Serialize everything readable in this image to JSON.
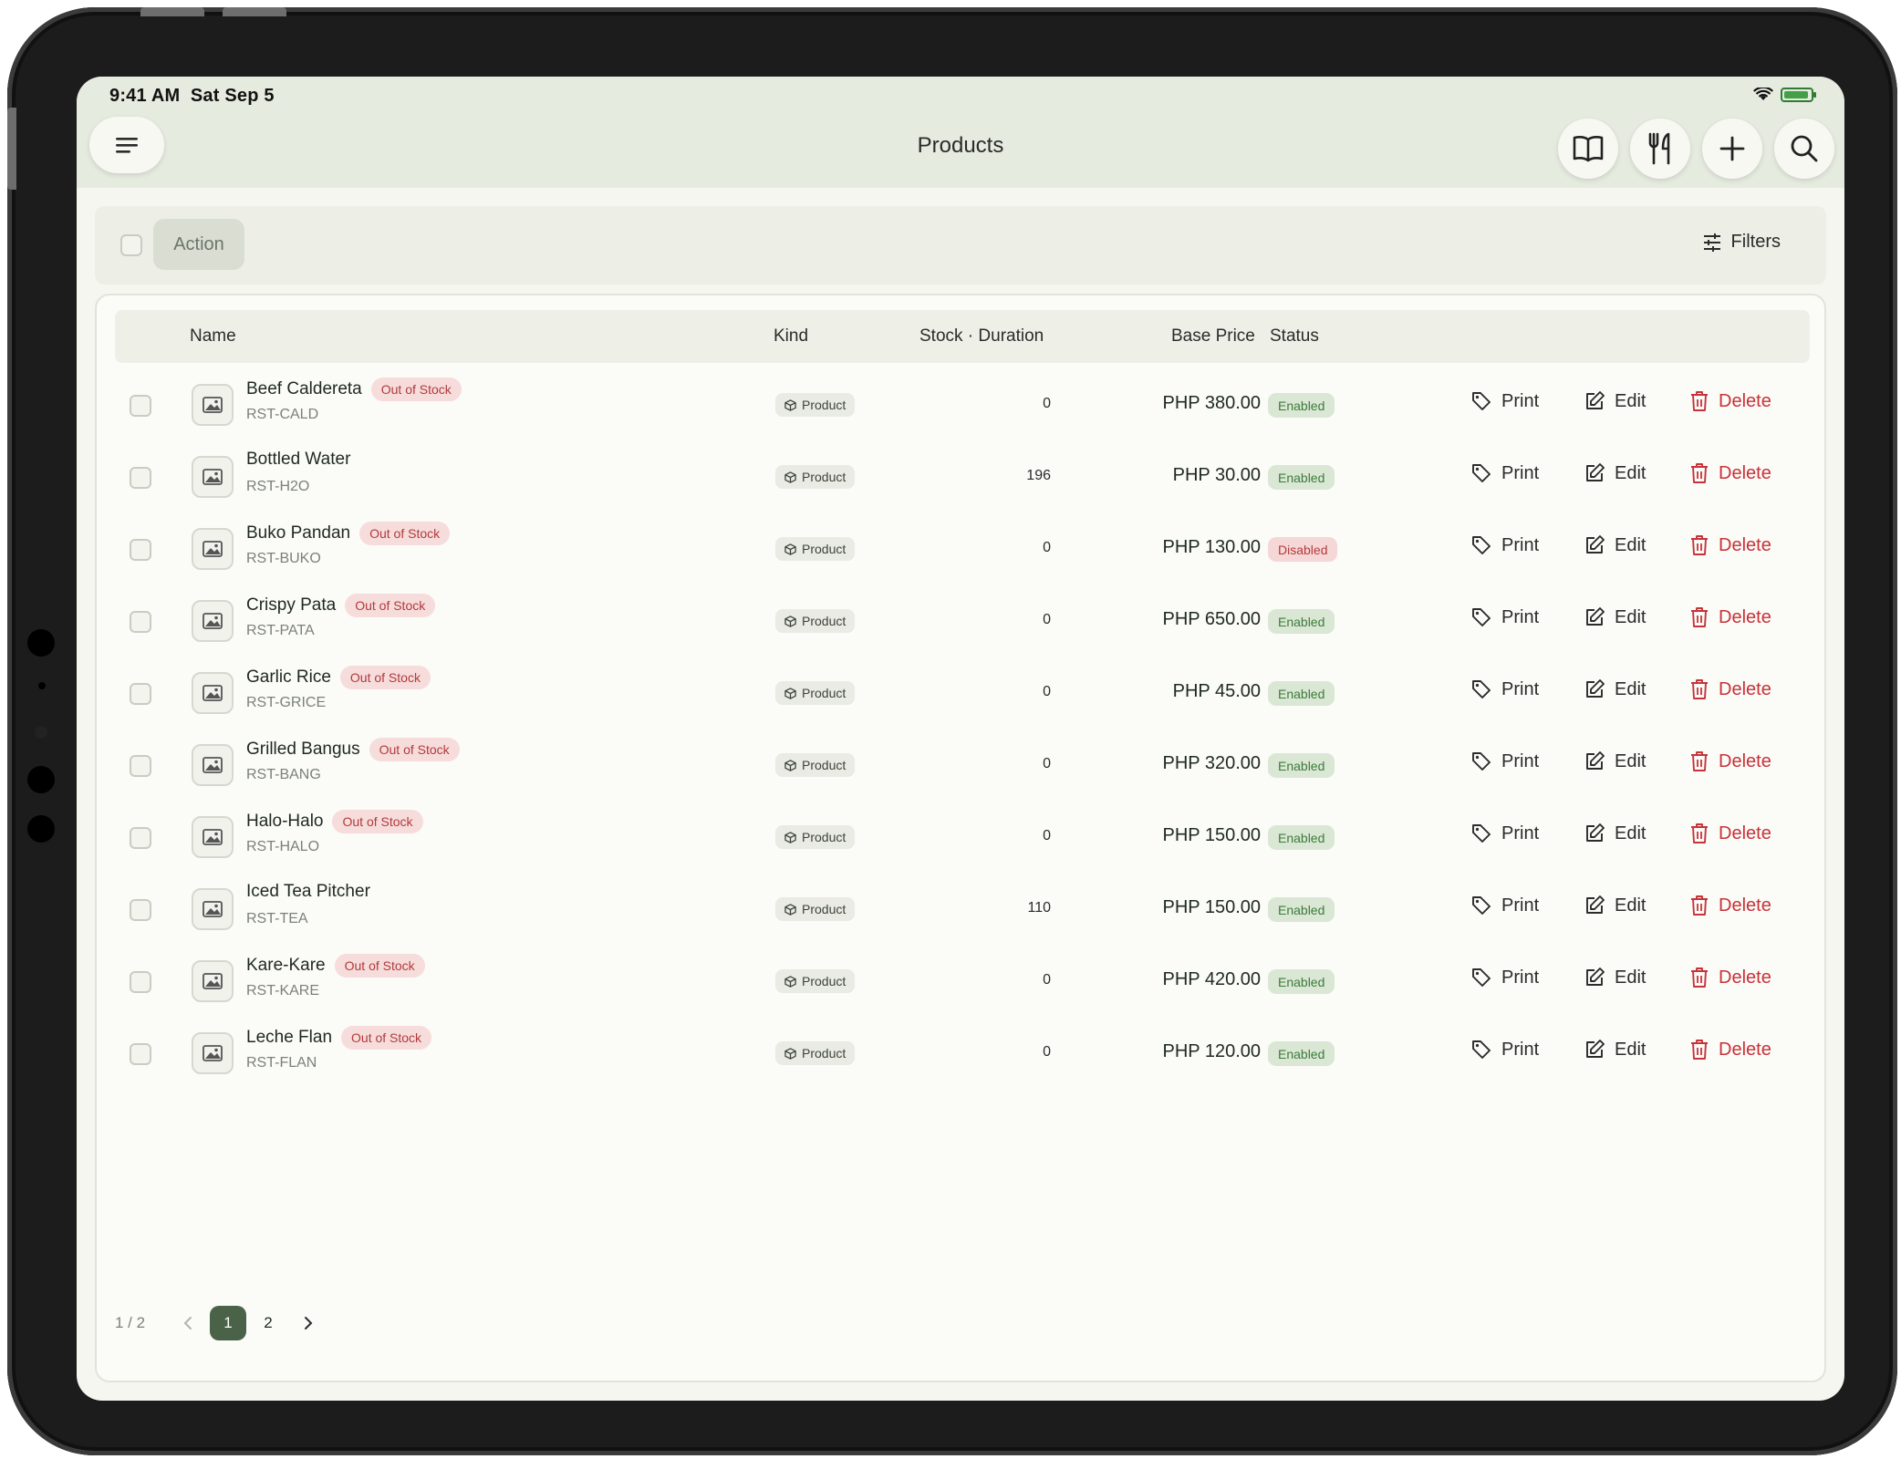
{
  "status_bar": {
    "time": "9:41 AM",
    "date": "Sat Sep 5"
  },
  "header": {
    "title": "Products",
    "icons": [
      "menu-icon",
      "book-icon",
      "utensils-icon",
      "plus-icon",
      "search-icon"
    ]
  },
  "actionbar": {
    "action_label": "Action",
    "filters_label": "Filters"
  },
  "table": {
    "columns": {
      "name": "Name",
      "kind": "Kind",
      "stock": "Stock · Duration",
      "price": "Base Price",
      "status": "Status"
    },
    "actions": {
      "print": "Print",
      "edit": "Edit",
      "delete": "Delete"
    },
    "rows": [
      {
        "name": "Beef Caldereta",
        "badge": "Out of Stock",
        "sku": "RST-CALD",
        "kind": "Product",
        "stock": "0",
        "price": "PHP 380.00",
        "status": "Enabled"
      },
      {
        "name": "Bottled Water",
        "badge": "",
        "sku": "RST-H2O",
        "kind": "Product",
        "stock": "196",
        "price": "PHP 30.00",
        "status": "Enabled"
      },
      {
        "name": "Buko Pandan",
        "badge": "Out of Stock",
        "sku": "RST-BUKO",
        "kind": "Product",
        "stock": "0",
        "price": "PHP 130.00",
        "status": "Disabled"
      },
      {
        "name": "Crispy Pata",
        "badge": "Out of Stock",
        "sku": "RST-PATA",
        "kind": "Product",
        "stock": "0",
        "price": "PHP 650.00",
        "status": "Enabled"
      },
      {
        "name": "Garlic Rice",
        "badge": "Out of Stock",
        "sku": "RST-GRICE",
        "kind": "Product",
        "stock": "0",
        "price": "PHP 45.00",
        "status": "Enabled"
      },
      {
        "name": "Grilled Bangus",
        "badge": "Out of Stock",
        "sku": "RST-BANG",
        "kind": "Product",
        "stock": "0",
        "price": "PHP 320.00",
        "status": "Enabled"
      },
      {
        "name": "Halo-Halo",
        "badge": "Out of Stock",
        "sku": "RST-HALO",
        "kind": "Product",
        "stock": "0",
        "price": "PHP 150.00",
        "status": "Enabled"
      },
      {
        "name": "Iced Tea Pitcher",
        "badge": "",
        "sku": "RST-TEA",
        "kind": "Product",
        "stock": "110",
        "price": "PHP 150.00",
        "status": "Enabled"
      },
      {
        "name": "Kare-Kare",
        "badge": "Out of Stock",
        "sku": "RST-KARE",
        "kind": "Product",
        "stock": "0",
        "price": "PHP 420.00",
        "status": "Enabled"
      },
      {
        "name": "Leche Flan",
        "badge": "Out of Stock",
        "sku": "RST-FLAN",
        "kind": "Product",
        "stock": "0",
        "price": "PHP 120.00",
        "status": "Enabled"
      }
    ]
  },
  "pagination": {
    "summary": "1 / 2",
    "pages": [
      "1",
      "2"
    ],
    "current": "1"
  },
  "colors": {
    "accent": "#4a6247",
    "danger": "#c8323a",
    "enabled": "#3e7a3b",
    "header_bg": "#e6ebe0"
  }
}
